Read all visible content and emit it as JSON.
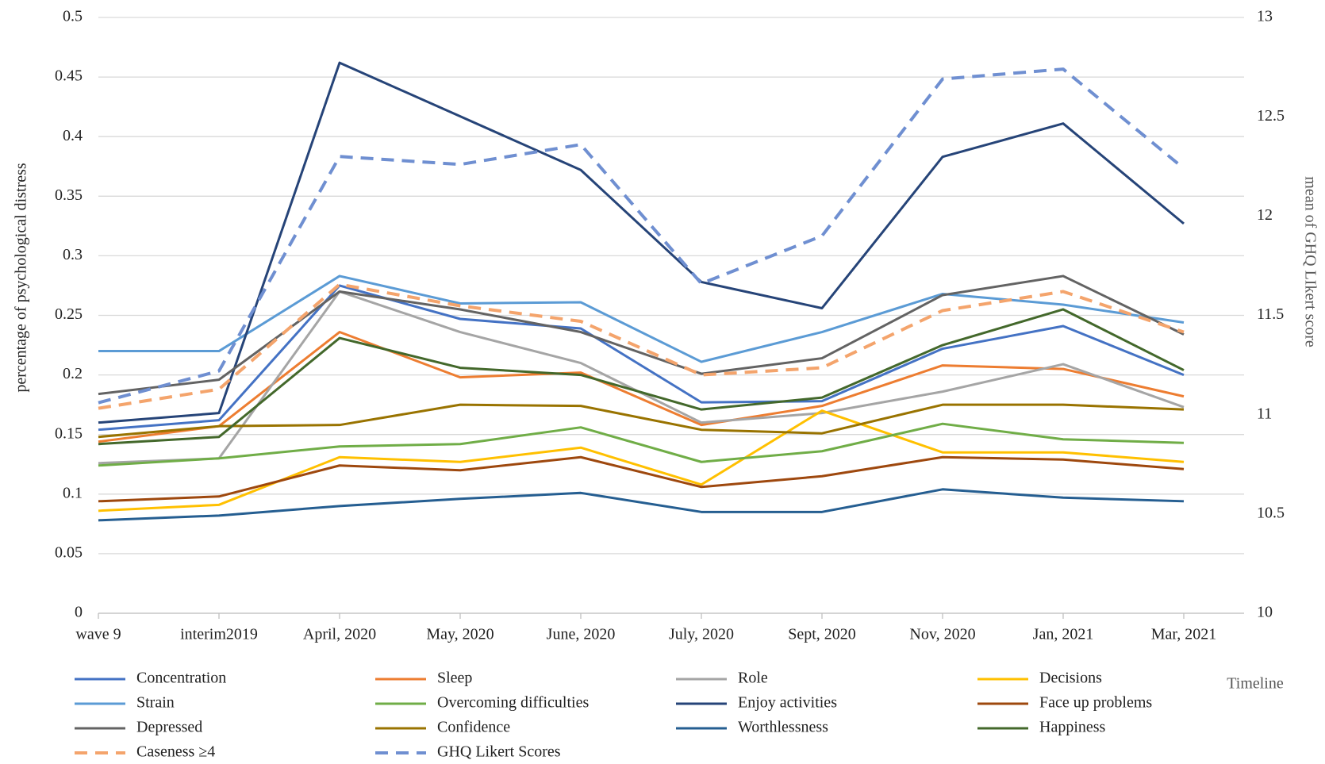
{
  "chart_data": {
    "type": "line",
    "x_label": "Timeline",
    "y_label": "percentage of psychological distress",
    "y2_label": "mean of GHQ LIkert score",
    "categories": [
      "wave 9",
      "interim2019",
      "April, 2020",
      "May, 2020",
      "June, 2020",
      "July, 2020",
      "Sept, 2020",
      "Nov, 2020",
      "Jan, 2021",
      "Mar, 2021"
    ],
    "ylim": [
      0,
      0.5
    ],
    "yticks": [
      0,
      0.05,
      0.1,
      0.15,
      0.2,
      0.25,
      0.3,
      0.35,
      0.4,
      0.45,
      0.5
    ],
    "y2lim": [
      10,
      13
    ],
    "y2ticks": [
      10,
      10.5,
      11,
      11.5,
      12,
      12.5,
      13
    ],
    "grid": true,
    "series": [
      {
        "name": "Concentration",
        "color": "#4472c4",
        "dash": false,
        "values": [
          0.154,
          0.162,
          0.275,
          0.247,
          0.239,
          0.177,
          0.178,
          0.222,
          0.241,
          0.2
        ]
      },
      {
        "name": "Sleep",
        "color": "#ed7d31",
        "dash": false,
        "values": [
          0.144,
          0.157,
          0.236,
          0.198,
          0.202,
          0.158,
          0.174,
          0.208,
          0.205,
          0.182
        ]
      },
      {
        "name": "Role",
        "color": "#a5a5a5",
        "dash": false,
        "values": [
          0.126,
          0.13,
          0.27,
          0.236,
          0.21,
          0.16,
          0.168,
          0.186,
          0.209,
          0.173
        ]
      },
      {
        "name": "Decisions",
        "color": "#ffc000",
        "dash": false,
        "values": [
          0.086,
          0.091,
          0.131,
          0.127,
          0.139,
          0.108,
          0.17,
          0.135,
          0.135,
          0.127
        ]
      },
      {
        "name": "Strain",
        "color": "#5b9bd5",
        "dash": false,
        "values": [
          0.22,
          0.22,
          0.283,
          0.26,
          0.261,
          0.211,
          0.236,
          0.268,
          0.259,
          0.244
        ]
      },
      {
        "name": "Overcoming difficulties",
        "color": "#70ad47",
        "dash": false,
        "values": [
          0.124,
          0.13,
          0.14,
          0.142,
          0.156,
          0.127,
          0.136,
          0.159,
          0.146,
          0.143
        ]
      },
      {
        "name": "Enjoy activities",
        "color": "#264478",
        "dash": false,
        "values": [
          0.16,
          0.168,
          0.462,
          0.417,
          0.372,
          0.278,
          0.256,
          0.383,
          0.411,
          0.327
        ]
      },
      {
        "name": "Face up problems",
        "color": "#9e480e",
        "dash": false,
        "values": [
          0.094,
          0.098,
          0.124,
          0.12,
          0.131,
          0.106,
          0.115,
          0.131,
          0.129,
          0.121
        ]
      },
      {
        "name": "Depressed",
        "color": "#636363",
        "dash": false,
        "values": [
          0.184,
          0.196,
          0.27,
          0.255,
          0.236,
          0.201,
          0.214,
          0.267,
          0.283,
          0.234
        ]
      },
      {
        "name": "Confidence",
        "color": "#997300",
        "dash": false,
        "values": [
          0.148,
          0.157,
          0.158,
          0.175,
          0.174,
          0.154,
          0.151,
          0.175,
          0.175,
          0.171
        ]
      },
      {
        "name": "Worthlessness",
        "color": "#255e91",
        "dash": false,
        "values": [
          0.078,
          0.082,
          0.09,
          0.096,
          0.101,
          0.085,
          0.085,
          0.104,
          0.097,
          0.094
        ]
      },
      {
        "name": "Happiness",
        "color": "#43682b",
        "dash": false,
        "values": [
          0.142,
          0.148,
          0.231,
          0.206,
          0.2,
          0.171,
          0.181,
          0.225,
          0.255,
          0.204
        ]
      },
      {
        "name": "Caseness ≥4",
        "color": "#f4a46c",
        "dash": true,
        "values": [
          0.172,
          0.188,
          0.276,
          0.258,
          0.245,
          0.2,
          0.206,
          0.254,
          0.27,
          0.236
        ]
      },
      {
        "name": "GHQ Likert Scores",
        "color": "#6f8fd1",
        "dash": true,
        "axis": "y2",
        "values": [
          11.06,
          11.22,
          12.3,
          12.26,
          12.36,
          11.66,
          11.9,
          12.69,
          12.74,
          12.24
        ]
      }
    ]
  }
}
